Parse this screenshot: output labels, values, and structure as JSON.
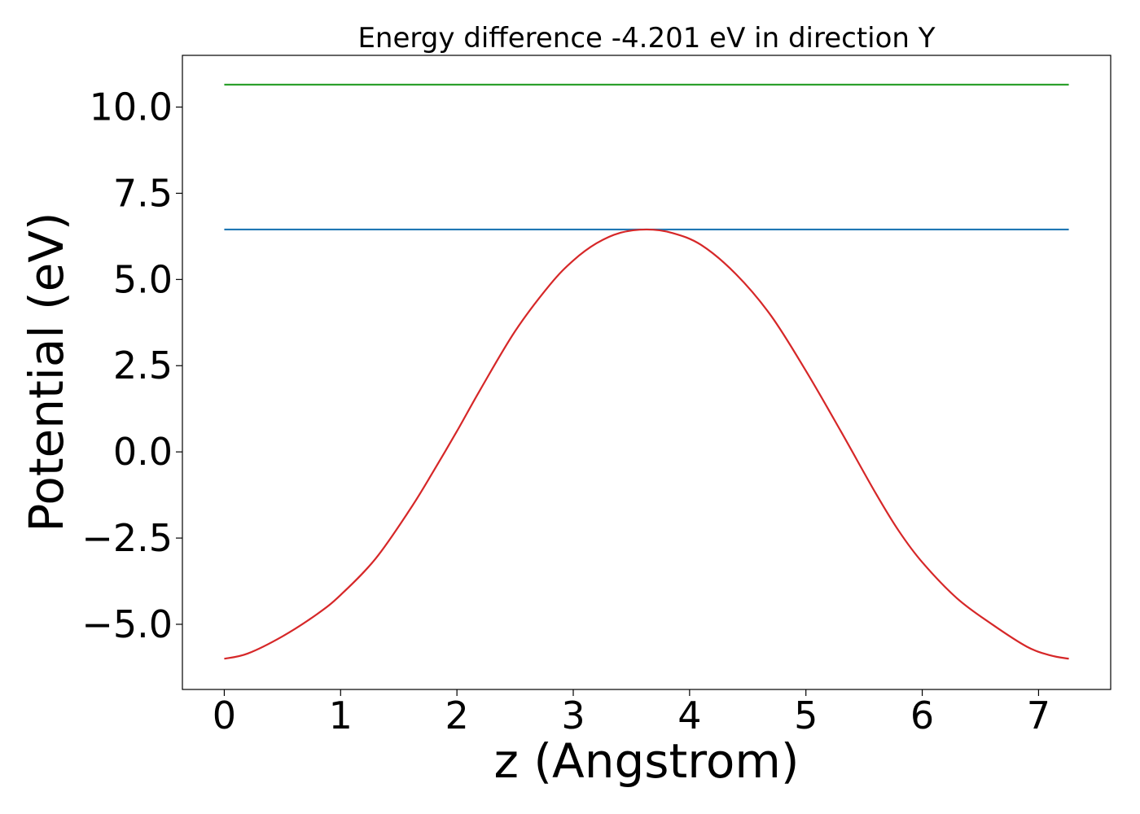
{
  "chart_data": {
    "type": "line",
    "title": "Energy difference -4.201 eV in direction Y",
    "xlabel": "z (Angstrom)",
    "ylabel": "Potential (eV)",
    "xlim": [
      -0.36,
      7.62
    ],
    "ylim": [
      -6.89,
      11.5
    ],
    "x_ticks": [
      0,
      1,
      2,
      3,
      4,
      5,
      6,
      7
    ],
    "x_tick_labels": [
      "0",
      "1",
      "2",
      "3",
      "4",
      "5",
      "6",
      "7"
    ],
    "y_ticks": [
      -5.0,
      -2.5,
      0.0,
      2.5,
      5.0,
      7.5,
      10.0
    ],
    "y_tick_labels": [
      "−5.0",
      "−2.5",
      "0.0",
      "2.5",
      "5.0",
      "7.5",
      "10.0"
    ],
    "grid": false,
    "series": [
      {
        "color": "#2ca02c",
        "x": [
          0,
          7.26
        ],
        "y": [
          10.65,
          10.65
        ]
      },
      {
        "color": "#1f77b4",
        "x": [
          0,
          7.26
        ],
        "y": [
          6.45,
          6.45
        ]
      },
      {
        "color": "#d62728",
        "x": [
          0,
          0.2,
          0.5,
          0.8,
          1.0,
          1.3,
          1.6,
          1.8,
          2.0,
          2.2,
          2.5,
          2.8,
          3.0,
          3.2,
          3.4,
          3.63,
          3.85,
          4.1,
          4.4,
          4.7,
          5.0,
          5.3,
          5.6,
          5.8,
          6.0,
          6.3,
          6.6,
          6.9,
          7.1,
          7.26
        ],
        "y": [
          -6.0,
          -5.85,
          -5.35,
          -4.7,
          -4.15,
          -3.1,
          -1.65,
          -0.55,
          0.6,
          1.8,
          3.5,
          4.85,
          5.55,
          6.05,
          6.35,
          6.45,
          6.35,
          6.0,
          5.15,
          3.95,
          2.35,
          0.6,
          -1.2,
          -2.3,
          -3.2,
          -4.25,
          -5.0,
          -5.65,
          -5.9,
          -6.0
        ]
      }
    ]
  }
}
